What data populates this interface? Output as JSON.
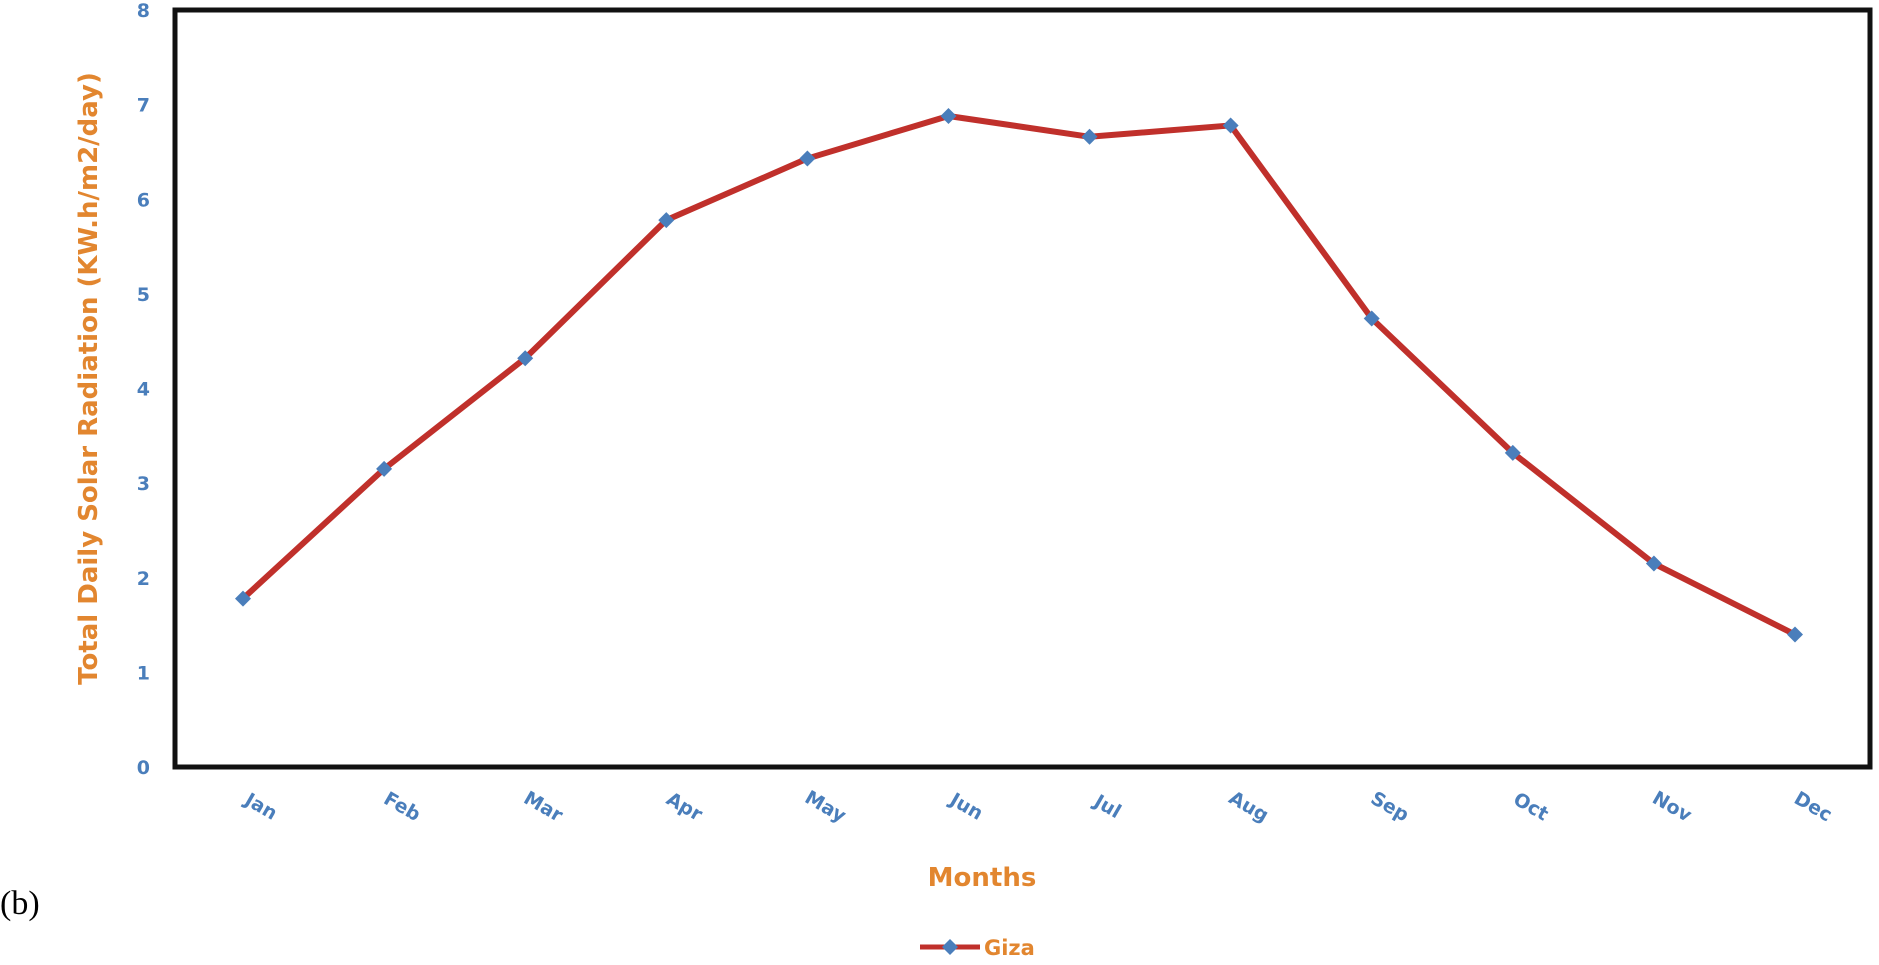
{
  "panel_label": "(b)",
  "chart_data": {
    "type": "line",
    "title": "",
    "xlabel": "Months",
    "ylabel": "Total Daily Solar Radiation  (KW.h/m2/day)",
    "categories": [
      "Jan",
      "Feb",
      "Mar",
      "Apr",
      "May",
      "Jun",
      "Jul",
      "Aug",
      "Sep",
      "Oct",
      "Nov",
      "Dec"
    ],
    "series": [
      {
        "name": "Giza",
        "values": [
          1.78,
          3.15,
          4.32,
          5.78,
          6.43,
          6.88,
          6.66,
          6.78,
          4.74,
          3.32,
          2.15,
          1.4
        ]
      }
    ],
    "ylim": [
      0,
      8
    ],
    "yticks": [
      "0",
      "1",
      "2",
      "3",
      "4",
      "5",
      "6",
      "7",
      "8"
    ],
    "grid": false,
    "legend_position": "bottom",
    "colors": {
      "line": "#c0302b",
      "marker": "#4a7ebb",
      "tick_text": "#4a7ebb",
      "axis_title": "#e2862f",
      "frame": "#111111"
    }
  }
}
